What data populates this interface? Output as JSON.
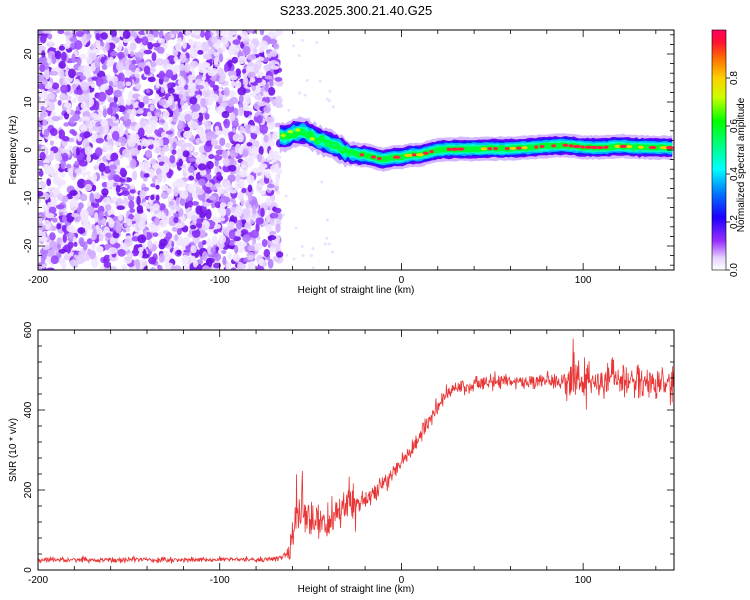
{
  "title": "S233.2025.300.21.40.G25",
  "chart_data": [
    {
      "type": "heatmap",
      "xlabel": "Height of straight line (km)",
      "ylabel": "Frequency (Hz)",
      "xlim": [
        -200,
        150
      ],
      "ylim": [
        -25,
        25
      ],
      "xticks": [
        -200,
        -100,
        0,
        100
      ],
      "yticks": [
        -20,
        -10,
        0,
        10,
        20
      ],
      "noise_region_x": [
        -200,
        -67
      ],
      "colorbar": {
        "label": "Normalized spectral amplitude",
        "range": [
          0,
          1
        ],
        "ticks": [
          0.0,
          0.2,
          0.4,
          0.6,
          0.8
        ]
      },
      "ridge": {
        "x": [
          -67,
          -60,
          -55,
          -50,
          -45,
          -40,
          -35,
          -30,
          -25,
          -20,
          -15,
          -10,
          -5,
          0,
          5,
          10,
          15,
          20,
          30,
          40,
          50,
          60,
          70,
          80,
          90,
          100,
          110,
          120,
          130,
          140,
          150
        ],
        "freq_hz": [
          2.5,
          3.2,
          4.0,
          3.0,
          2.0,
          1.5,
          0.5,
          -0.5,
          -1.0,
          -1.0,
          -1.5,
          -2.0,
          -1.5,
          -1.5,
          -1.0,
          -1.0,
          -0.5,
          0.0,
          0.2,
          0.2,
          0.3,
          0.3,
          0.5,
          0.8,
          1.0,
          0.6,
          0.5,
          0.8,
          0.6,
          0.5,
          0.5
        ]
      }
    },
    {
      "type": "line",
      "xlabel": "Height of straight line (km)",
      "ylabel": "SNR (10 * v/v)",
      "xlim": [
        -200,
        150
      ],
      "ylim": [
        0,
        600
      ],
      "xticks": [
        -200,
        -100,
        0,
        100
      ],
      "yticks": [
        0,
        200,
        400,
        600
      ],
      "color": "#e83535",
      "series": [
        {
          "name": "SNR",
          "x": [
            -200,
            -180,
            -160,
            -140,
            -120,
            -100,
            -80,
            -70,
            -62,
            -58,
            -55,
            -50,
            -45,
            -40,
            -35,
            -30,
            -25,
            -20,
            -15,
            -10,
            -5,
            0,
            5,
            10,
            15,
            20,
            25,
            30,
            40,
            50,
            60,
            70,
            80,
            90,
            100,
            110,
            120,
            130,
            140,
            150
          ],
          "y": [
            25,
            26,
            25,
            26,
            25,
            27,
            26,
            27,
            40,
            110,
            150,
            120,
            130,
            100,
            145,
            160,
            165,
            175,
            190,
            215,
            240,
            270,
            300,
            340,
            375,
            410,
            440,
            455,
            465,
            470,
            472,
            468,
            475,
            470,
            480,
            472,
            478,
            470,
            465,
            470
          ]
        }
      ]
    }
  ]
}
